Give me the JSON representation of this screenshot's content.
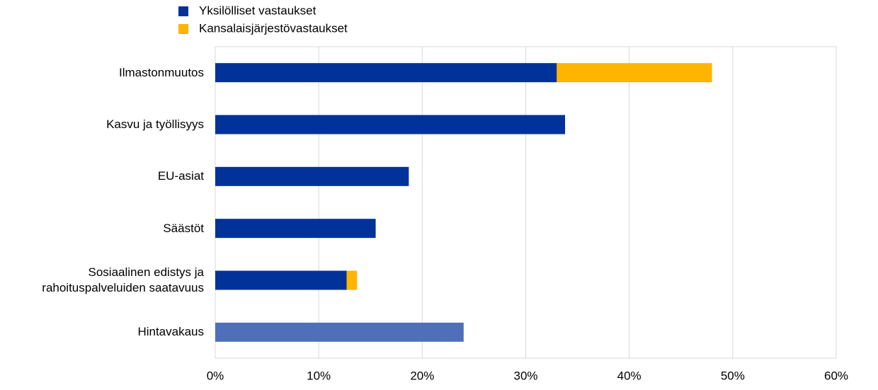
{
  "chart_data": {
    "type": "stacked-bar-horizontal",
    "categories": [
      "Ilmastonmuutos",
      "Kasvu ja työllisyys",
      "EU-asiat",
      "Säästöt",
      "Sosiaalinen edistys ja rahoituspalveluiden saatavuus",
      "Hintavakaus"
    ],
    "series": [
      {
        "name": "Yksilölliset vastaukset",
        "color": "#003299",
        "colors": [
          "#003299",
          "#003299",
          "#003299",
          "#003299",
          "#003299",
          "#4f6fba"
        ],
        "values": [
          33.0,
          33.8,
          18.7,
          15.5,
          12.7,
          24.0
        ]
      },
      {
        "name": "Kansalaisjärjestövastaukset",
        "color": "#ffb400",
        "values": [
          15.0,
          0,
          0,
          0,
          1.0,
          0
        ]
      }
    ],
    "xlim": [
      0,
      60
    ],
    "xticks": [
      {
        "value": 0,
        "label": "0%"
      },
      {
        "value": 10,
        "label": "10%"
      },
      {
        "value": 20,
        "label": "20%"
      },
      {
        "value": 30,
        "label": "30%"
      },
      {
        "value": 40,
        "label": "40%"
      },
      {
        "value": 50,
        "label": "50%"
      },
      {
        "value": 60,
        "label": "60%"
      }
    ],
    "grid": true
  }
}
